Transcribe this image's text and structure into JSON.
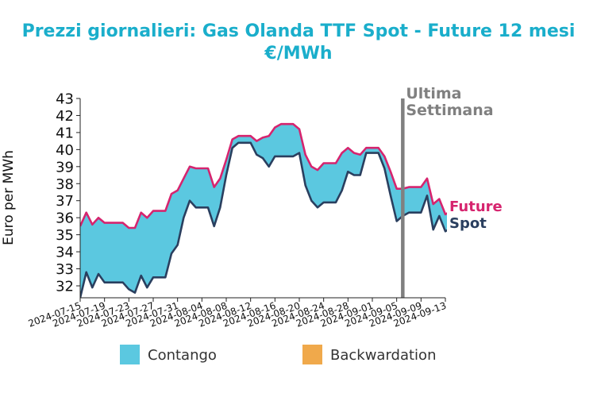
{
  "chart_data": {
    "type": "area",
    "title": "Prezzi giornalieri: Gas Olanda TTF Spot - Future 12 mesi",
    "subtitle": "€/MWh",
    "xlabel": "",
    "ylabel": "Euro per MWh",
    "ylim": [
      31.3,
      43
    ],
    "yticks": [
      32,
      33,
      34,
      35,
      36,
      37,
      38,
      39,
      40,
      41,
      42,
      43
    ],
    "xlim": [
      "2024-07-15",
      "2024-09-13"
    ],
    "xtick_labels": [
      "2024-07-15",
      "2024-07-19",
      "2024-07-23",
      "2024-07-27",
      "2024-07-31",
      "2024-08-04",
      "2024-08-08",
      "2024-08-12",
      "2024-08-16",
      "2024-08-20",
      "2024-08-24",
      "2024-08-28",
      "2024-09-01",
      "2024-09-05",
      "2024-09-09",
      "2024-09-13"
    ],
    "legend_position": "bottom",
    "legend": [
      {
        "label": "Contango",
        "color": "#5bc8e0"
      },
      {
        "label": "Backwardation",
        "color": "#f0a94b"
      }
    ],
    "annotations": [
      {
        "text_lines": [
          "Ultima",
          "Settimana"
        ],
        "x": "2024-09-06",
        "color": "#808080",
        "kind": "vertical-line"
      }
    ],
    "series": [
      {
        "name": "Future",
        "color": "#d6246e",
        "points": [
          [
            "2024-07-15",
            35.5
          ],
          [
            "2024-07-16",
            36.3
          ],
          [
            "2024-07-17",
            35.6
          ],
          [
            "2024-07-18",
            36.0
          ],
          [
            "2024-07-19",
            35.7
          ],
          [
            "2024-07-22",
            35.7
          ],
          [
            "2024-07-23",
            35.4
          ],
          [
            "2024-07-24",
            35.4
          ],
          [
            "2024-07-25",
            36.3
          ],
          [
            "2024-07-26",
            36.0
          ],
          [
            "2024-07-27",
            36.4
          ],
          [
            "2024-07-29",
            36.4
          ],
          [
            "2024-07-30",
            37.4
          ],
          [
            "2024-07-31",
            37.6
          ],
          [
            "2024-08-01",
            38.3
          ],
          [
            "2024-08-02",
            39.0
          ],
          [
            "2024-08-03",
            38.9
          ],
          [
            "2024-08-05",
            38.9
          ],
          [
            "2024-08-06",
            37.8
          ],
          [
            "2024-08-07",
            38.3
          ],
          [
            "2024-08-08",
            39.4
          ],
          [
            "2024-08-09",
            40.6
          ],
          [
            "2024-08-10",
            40.8
          ],
          [
            "2024-08-12",
            40.8
          ],
          [
            "2024-08-13",
            40.5
          ],
          [
            "2024-08-14",
            40.7
          ],
          [
            "2024-08-15",
            40.8
          ],
          [
            "2024-08-16",
            41.3
          ],
          [
            "2024-08-17",
            41.5
          ],
          [
            "2024-08-19",
            41.5
          ],
          [
            "2024-08-20",
            41.2
          ],
          [
            "2024-08-21",
            39.7
          ],
          [
            "2024-08-22",
            39.0
          ],
          [
            "2024-08-23",
            38.8
          ],
          [
            "2024-08-24",
            39.2
          ],
          [
            "2024-08-26",
            39.2
          ],
          [
            "2024-08-27",
            39.8
          ],
          [
            "2024-08-28",
            40.1
          ],
          [
            "2024-08-29",
            39.8
          ],
          [
            "2024-08-30",
            39.7
          ],
          [
            "2024-08-31",
            40.1
          ],
          [
            "2024-09-02",
            40.1
          ],
          [
            "2024-09-03",
            39.6
          ],
          [
            "2024-09-04",
            38.7
          ],
          [
            "2024-09-05",
            37.7
          ],
          [
            "2024-09-06",
            37.7
          ],
          [
            "2024-09-07",
            37.8
          ],
          [
            "2024-09-09",
            37.8
          ],
          [
            "2024-09-10",
            38.3
          ],
          [
            "2024-09-11",
            36.8
          ],
          [
            "2024-09-12",
            37.1
          ],
          [
            "2024-09-13",
            36.2
          ],
          [
            "2024-09-14",
            36.4
          ]
        ]
      },
      {
        "name": "Spot",
        "color": "#2a3f5f",
        "points": [
          [
            "2024-07-15",
            31.3
          ],
          [
            "2024-07-16",
            32.8
          ],
          [
            "2024-07-17",
            31.9
          ],
          [
            "2024-07-18",
            32.7
          ],
          [
            "2024-07-19",
            32.2
          ],
          [
            "2024-07-22",
            32.2
          ],
          [
            "2024-07-23",
            31.8
          ],
          [
            "2024-07-24",
            31.6
          ],
          [
            "2024-07-25",
            32.6
          ],
          [
            "2024-07-26",
            31.9
          ],
          [
            "2024-07-27",
            32.5
          ],
          [
            "2024-07-29",
            32.5
          ],
          [
            "2024-07-30",
            33.9
          ],
          [
            "2024-07-31",
            34.4
          ],
          [
            "2024-08-01",
            36.0
          ],
          [
            "2024-08-02",
            37.0
          ],
          [
            "2024-08-03",
            36.6
          ],
          [
            "2024-08-05",
            36.6
          ],
          [
            "2024-08-06",
            35.5
          ],
          [
            "2024-08-07",
            36.6
          ],
          [
            "2024-08-08",
            38.5
          ],
          [
            "2024-08-09",
            40.1
          ],
          [
            "2024-08-10",
            40.4
          ],
          [
            "2024-08-12",
            40.4
          ],
          [
            "2024-08-13",
            39.7
          ],
          [
            "2024-08-14",
            39.5
          ],
          [
            "2024-08-15",
            39.0
          ],
          [
            "2024-08-16",
            39.6
          ],
          [
            "2024-08-19",
            39.6
          ],
          [
            "2024-08-20",
            39.8
          ],
          [
            "2024-08-21",
            37.9
          ],
          [
            "2024-08-22",
            37.0
          ],
          [
            "2024-08-23",
            36.6
          ],
          [
            "2024-08-24",
            36.9
          ],
          [
            "2024-08-26",
            36.9
          ],
          [
            "2024-08-27",
            37.6
          ],
          [
            "2024-08-28",
            38.7
          ],
          [
            "2024-08-29",
            38.5
          ],
          [
            "2024-08-30",
            38.5
          ],
          [
            "2024-08-31",
            39.8
          ],
          [
            "2024-09-02",
            39.8
          ],
          [
            "2024-09-03",
            38.9
          ],
          [
            "2024-09-04",
            37.3
          ],
          [
            "2024-09-05",
            35.8
          ],
          [
            "2024-09-06",
            36.1
          ],
          [
            "2024-09-07",
            36.3
          ],
          [
            "2024-09-09",
            36.3
          ],
          [
            "2024-09-10",
            37.3
          ],
          [
            "2024-09-11",
            35.3
          ],
          [
            "2024-09-12",
            36.1
          ],
          [
            "2024-09-13",
            35.2
          ],
          [
            "2024-09-14",
            35.4
          ]
        ]
      }
    ]
  }
}
